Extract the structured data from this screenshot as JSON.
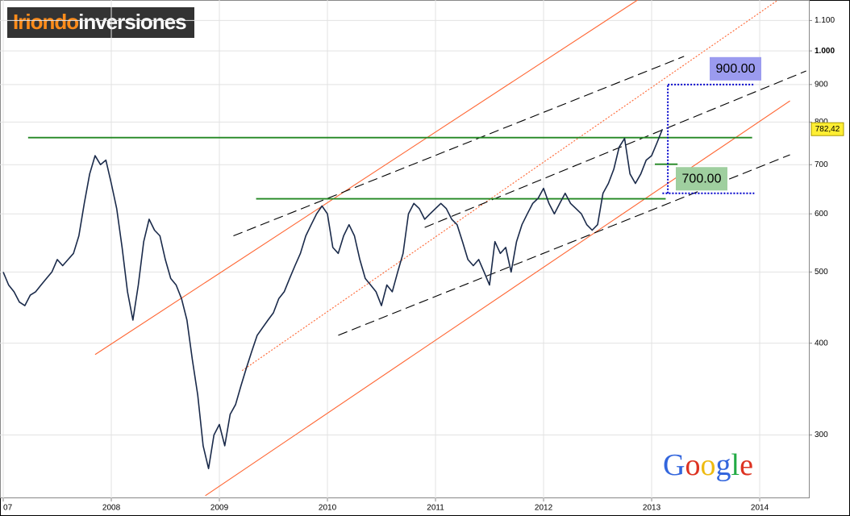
{
  "chart_data": {
    "type": "line",
    "logo": [
      "Iriondo",
      "inversiones"
    ],
    "watermark": "Google",
    "log_scale": true,
    "grid": true,
    "xlim": [
      2006.97,
      2014.455
    ],
    "xticks": [
      {
        "value": 2007,
        "label": "07"
      },
      2008,
      2009,
      2010,
      2011,
      2012,
      2013,
      2014
    ],
    "ylim": [
      246,
      1173
    ],
    "yticks": [
      300,
      400,
      500,
      600,
      700,
      800,
      900,
      {
        "value": 1000,
        "label": "1.000"
      },
      {
        "value": 1100,
        "label": "1.100"
      }
    ],
    "x": [
      2007,
      2007.05,
      2007.1,
      2007.15,
      2007.2,
      2007.25,
      2007.3,
      2007.35,
      2007.4,
      2007.45,
      2007.5,
      2007.55,
      2007.6,
      2007.65,
      2007.7,
      2007.75,
      2007.8,
      2007.85,
      2007.9,
      2007.95,
      2008,
      2008.05,
      2008.1,
      2008.15,
      2008.2,
      2008.25,
      2008.3,
      2008.35,
      2008.4,
      2008.45,
      2008.5,
      2008.55,
      2008.6,
      2008.65,
      2008.7,
      2008.75,
      2008.8,
      2008.85,
      2008.9,
      2008.95,
      2009,
      2009.05,
      2009.1,
      2009.15,
      2009.2,
      2009.25,
      2009.3,
      2009.35,
      2009.4,
      2009.45,
      2009.5,
      2009.55,
      2009.6,
      2009.65,
      2009.7,
      2009.75,
      2009.8,
      2009.85,
      2009.9,
      2009.95,
      2010,
      2010.05,
      2010.1,
      2010.15,
      2010.2,
      2010.25,
      2010.3,
      2010.35,
      2010.4,
      2010.45,
      2010.5,
      2010.55,
      2010.6,
      2010.65,
      2010.7,
      2010.75,
      2010.8,
      2010.85,
      2010.9,
      2010.95,
      2011,
      2011.05,
      2011.1,
      2011.15,
      2011.2,
      2011.25,
      2011.3,
      2011.35,
      2011.4,
      2011.45,
      2011.5,
      2011.55,
      2011.6,
      2011.65,
      2011.7,
      2011.75,
      2011.8,
      2011.85,
      2011.9,
      2011.95,
      2012,
      2012.05,
      2012.1,
      2012.15,
      2012.2,
      2012.25,
      2012.3,
      2012.35,
      2012.4,
      2012.45,
      2012.5,
      2012.55,
      2012.6,
      2012.65,
      2012.7,
      2012.75,
      2012.8,
      2012.85,
      2012.9,
      2012.95,
      2013,
      2013.05,
      2013.1
    ],
    "series": [
      {
        "color": "#1a2a4a",
        "values": [
          500,
          480,
          470,
          455,
          450,
          465,
          470,
          480,
          490,
          500,
          520,
          510,
          520,
          530,
          560,
          620,
          680,
          720,
          700,
          710,
          660,
          610,
          540,
          470,
          430,
          480,
          550,
          590,
          570,
          560,
          520,
          490,
          480,
          460,
          430,
          380,
          340,
          290,
          270,
          300,
          310,
          290,
          320,
          330,
          350,
          370,
          390,
          410,
          420,
          430,
          440,
          460,
          470,
          490,
          510,
          530,
          560,
          580,
          600,
          615,
          600,
          540,
          530,
          560,
          580,
          560,
          520,
          490,
          480,
          470,
          450,
          480,
          470,
          500,
          530,
          600,
          620,
          610,
          590,
          600,
          610,
          620,
          610,
          590,
          580,
          550,
          520,
          510,
          520,
          500,
          480,
          550,
          530,
          540,
          500,
          550,
          580,
          600,
          620,
          630,
          650,
          620,
          600,
          620,
          640,
          620,
          610,
          600,
          580,
          570,
          580,
          640,
          660,
          690,
          740,
          760,
          680,
          660,
          680,
          710,
          720,
          750,
          782.42
        ]
      }
    ],
    "lines": [
      {
        "x": [
          2007.85,
          2012.87
        ],
        "y": [
          386,
          1173
        ],
        "color": "#ff6633",
        "style": "solid"
      },
      {
        "x": [
          2008.87,
          2014.28
        ],
        "y": [
          248,
          855
        ],
        "color": "#ff6633",
        "style": "solid"
      },
      {
        "x": [
          2009.21,
          2014.17
        ],
        "y": [
          367,
          1173
        ],
        "color": "#ff6633",
        "style": "dotted"
      },
      {
        "x": [
          2009.13,
          2013.3
        ],
        "y": [
          560,
          983
        ],
        "color": "#000000",
        "style": "dashed"
      },
      {
        "x": [
          2010.9,
          2014.43
        ],
        "y": [
          575,
          939
        ],
        "color": "#000000",
        "style": "dashed"
      },
      {
        "x": [
          2010.1,
          2014.28
        ],
        "y": [
          410,
          722
        ],
        "color": "#000000",
        "style": "dashed"
      },
      {
        "x": [
          2007.23,
          2013.93
        ],
        "y": [
          762,
          762
        ],
        "color": "#228822",
        "style": "solid"
      },
      {
        "x": [
          2009.34,
          2013.13
        ],
        "y": [
          629,
          629
        ],
        "color": "#228822",
        "style": "solid"
      },
      {
        "x": [
          2013.03,
          2013.24
        ],
        "y": [
          701,
          701
        ],
        "color": "#228822",
        "style": "solid"
      },
      {
        "x": [
          2013.15,
          2013.15
        ],
        "y": [
          640,
          900
        ],
        "color": "#0000cc",
        "style": "dotted"
      },
      {
        "x": [
          2013.15,
          2013.95
        ],
        "y": [
          900,
          900
        ],
        "color": "#0000cc",
        "style": "dotted"
      },
      {
        "x": [
          2013.1,
          2013.95
        ],
        "y": [
          640,
          640
        ],
        "color": "#0000cc",
        "style": "dotted"
      }
    ],
    "annotations": [
      {
        "label": "900.00",
        "value": 900,
        "color": "#9b9bef"
      },
      {
        "label": "700.00",
        "value": 700,
        "color": "#9fcf9f"
      }
    ],
    "price_tag": {
      "label": "782,42",
      "value": 782.42,
      "color": "#ffee33"
    }
  }
}
